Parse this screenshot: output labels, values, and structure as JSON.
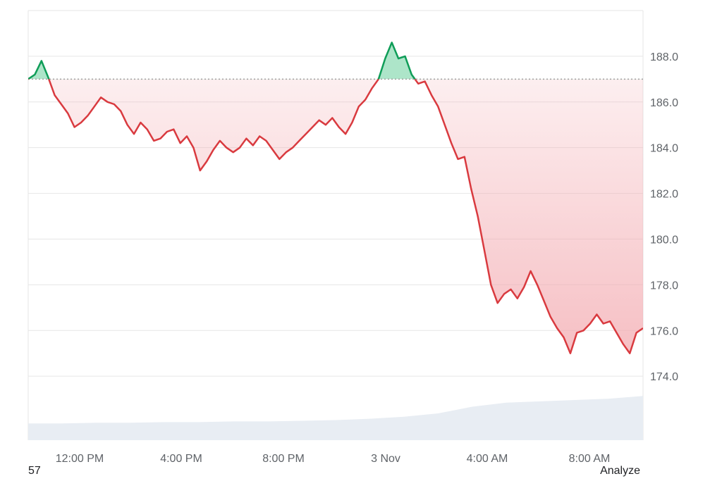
{
  "chart_data": {
    "type": "line",
    "title": "",
    "xlabel": "",
    "ylabel": "",
    "x_ticks": [
      "12:00 PM",
      "4:00 PM",
      "8:00 PM",
      "3 Nov",
      "4:00 AM",
      "8:00 AM"
    ],
    "y_ticks": [
      "188.0",
      "186.0",
      "184.0",
      "182.0",
      "180.0",
      "178.0",
      "176.0",
      "174.0"
    ],
    "ylim": [
      171.2,
      190.0
    ],
    "reference_value": 187.0,
    "grid": true,
    "colors": {
      "up": "#0f9d58",
      "down": "#d93a3f",
      "up_fill": "#9fe0bf",
      "down_fill": "#f3aab0",
      "volume": "#e8edf3",
      "grid": "#e6e6e6",
      "reference": "#a0a0a0"
    },
    "series": [
      {
        "values": [
          187.0,
          187.2,
          187.8,
          187.1,
          186.3,
          185.9,
          185.5,
          184.9,
          185.1,
          185.4,
          185.8,
          186.2,
          186.0,
          185.9,
          185.6,
          185.0,
          184.6,
          185.1,
          184.8,
          184.3,
          184.4,
          184.7,
          184.8,
          184.2,
          184.5,
          184.0,
          183.0,
          183.4,
          183.9,
          184.3,
          184.0,
          183.8,
          184.0,
          184.4,
          184.1,
          184.5,
          184.3,
          183.9,
          183.5,
          183.8,
          184.0,
          184.3,
          184.6,
          184.9,
          185.2,
          185.0,
          185.3,
          184.9,
          184.6,
          185.1,
          185.8,
          186.1,
          186.6,
          187.0,
          187.9,
          188.6,
          187.9,
          188.0,
          187.2,
          186.8,
          186.9,
          186.3,
          185.8,
          185.0,
          184.2,
          183.5,
          183.6,
          182.2,
          181.0,
          179.5,
          178.0,
          177.2,
          177.6,
          177.8,
          177.4,
          177.9,
          178.6,
          178.0,
          177.3,
          176.6,
          176.1,
          175.7,
          175.0,
          175.9,
          176.0,
          176.3,
          176.7,
          176.3,
          176.4,
          175.9,
          175.4,
          175.0,
          175.9,
          176.1
        ]
      }
    ],
    "volume": [
      0.25,
      0.25,
      0.26,
      0.26,
      0.27,
      0.27,
      0.28,
      0.28,
      0.29,
      0.3,
      0.32,
      0.35,
      0.4,
      0.5,
      0.56,
      0.58,
      0.6,
      0.62,
      0.66
    ]
  },
  "footer": {
    "left_text": "57",
    "right_text": "Analyze"
  }
}
